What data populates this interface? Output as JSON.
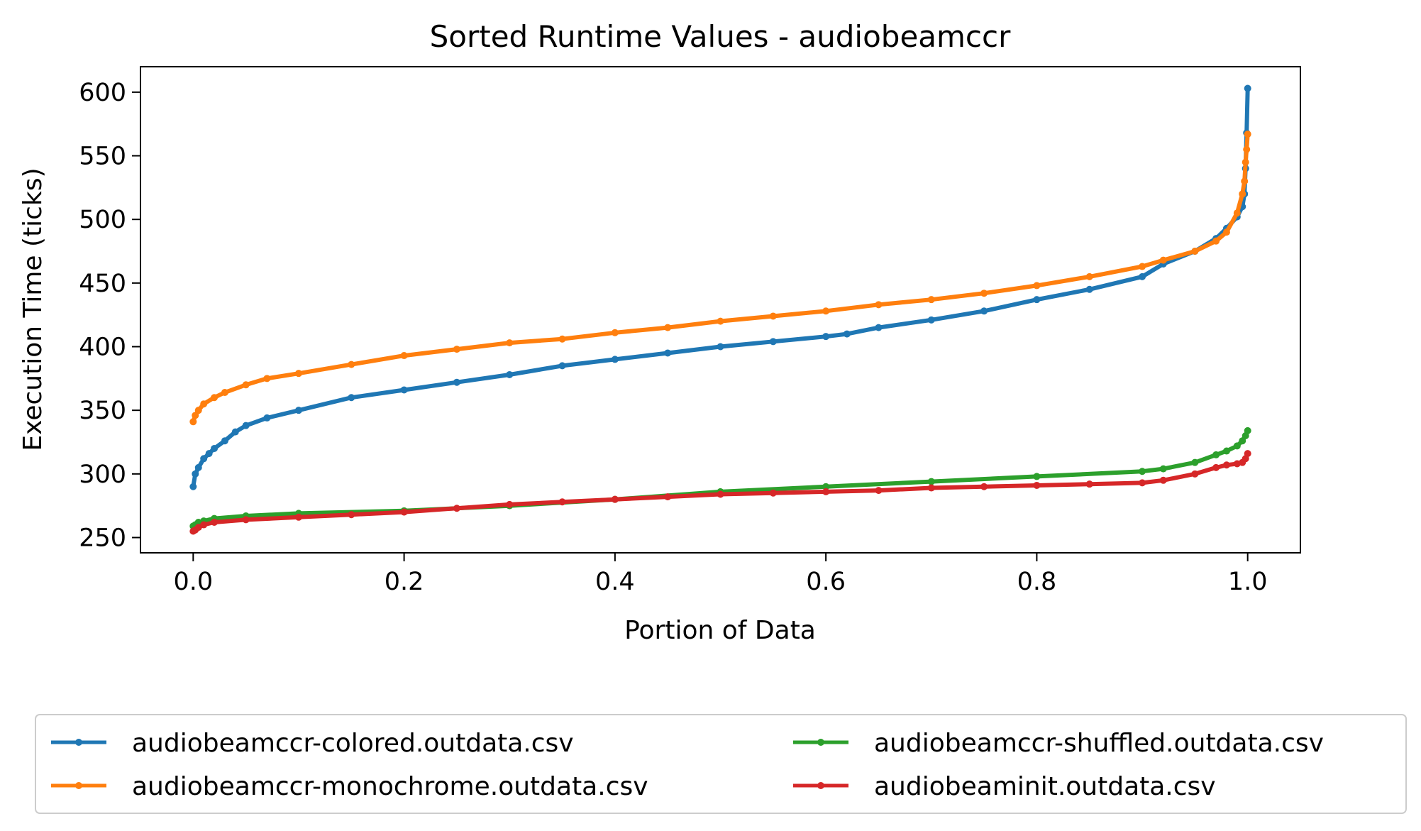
{
  "chart_data": {
    "type": "line",
    "title": "Sorted Runtime Values - audiobeamccr",
    "xlabel": "Portion of Data",
    "ylabel": "Execution Time (ticks)",
    "xlim": [
      -0.05,
      1.05
    ],
    "ylim": [
      238,
      620
    ],
    "xticks": [
      0.0,
      0.2,
      0.4,
      0.6,
      0.8,
      1.0
    ],
    "xtick_labels": [
      "0.0",
      "0.2",
      "0.4",
      "0.6",
      "0.8",
      "1.0"
    ],
    "yticks": [
      250,
      300,
      350,
      400,
      450,
      500,
      550,
      600
    ],
    "ytick_labels": [
      "250",
      "300",
      "350",
      "400",
      "450",
      "500",
      "550",
      "600"
    ],
    "grid": false,
    "legend_position": "below",
    "series": [
      {
        "name": "audiobeamccr-colored.outdata.csv",
        "color": "#1f77b4",
        "x": [
          0.0,
          0.002,
          0.005,
          0.01,
          0.015,
          0.02,
          0.03,
          0.04,
          0.05,
          0.07,
          0.1,
          0.15,
          0.2,
          0.25,
          0.3,
          0.35,
          0.4,
          0.45,
          0.5,
          0.55,
          0.6,
          0.62,
          0.65,
          0.7,
          0.75,
          0.8,
          0.85,
          0.9,
          0.92,
          0.95,
          0.97,
          0.98,
          0.99,
          0.995,
          0.997,
          0.998,
          0.999,
          1.0
        ],
        "y": [
          290,
          300,
          305,
          312,
          316,
          320,
          326,
          333,
          338,
          344,
          350,
          360,
          366,
          372,
          378,
          385,
          390,
          395,
          400,
          404,
          408,
          410,
          415,
          421,
          428,
          437,
          445,
          455,
          465,
          475,
          485,
          493,
          502,
          510,
          520,
          540,
          568,
          603
        ]
      },
      {
        "name": "audiobeamccr-monochrome.outdata.csv",
        "color": "#ff7f0e",
        "x": [
          0.0,
          0.002,
          0.005,
          0.01,
          0.02,
          0.03,
          0.05,
          0.07,
          0.1,
          0.15,
          0.2,
          0.25,
          0.3,
          0.35,
          0.4,
          0.45,
          0.5,
          0.55,
          0.6,
          0.65,
          0.7,
          0.75,
          0.8,
          0.85,
          0.9,
          0.92,
          0.95,
          0.97,
          0.98,
          0.99,
          0.995,
          0.997,
          0.998,
          0.999,
          1.0
        ],
        "y": [
          341,
          346,
          350,
          355,
          360,
          364,
          370,
          375,
          379,
          386,
          393,
          398,
          403,
          406,
          411,
          415,
          420,
          424,
          428,
          433,
          437,
          442,
          448,
          455,
          463,
          468,
          475,
          483,
          490,
          505,
          520,
          530,
          545,
          555,
          567
        ]
      },
      {
        "name": "audiobeamccr-shuffled.outdata.csv",
        "color": "#2ca02c",
        "x": [
          0.0,
          0.002,
          0.005,
          0.01,
          0.02,
          0.05,
          0.1,
          0.2,
          0.3,
          0.4,
          0.5,
          0.6,
          0.7,
          0.8,
          0.9,
          0.92,
          0.95,
          0.97,
          0.98,
          0.99,
          0.995,
          0.998,
          1.0
        ],
        "y": [
          259,
          260,
          262,
          263,
          265,
          267,
          269,
          271,
          275,
          280,
          286,
          290,
          294,
          298,
          302,
          304,
          309,
          315,
          318,
          322,
          326,
          330,
          334
        ]
      },
      {
        "name": "audiobeaminit.outdata.csv",
        "color": "#d62728",
        "x": [
          0.0,
          0.002,
          0.005,
          0.01,
          0.02,
          0.05,
          0.1,
          0.15,
          0.2,
          0.25,
          0.3,
          0.35,
          0.4,
          0.45,
          0.5,
          0.55,
          0.6,
          0.65,
          0.7,
          0.75,
          0.8,
          0.85,
          0.9,
          0.92,
          0.95,
          0.97,
          0.98,
          0.99,
          0.995,
          0.998,
          1.0
        ],
        "y": [
          255,
          256,
          258,
          260,
          262,
          264,
          266,
          268,
          270,
          273,
          276,
          278,
          280,
          282,
          284,
          285,
          286,
          287,
          289,
          290,
          291,
          292,
          293,
          295,
          300,
          305,
          307,
          308,
          309,
          312,
          316
        ]
      }
    ]
  }
}
